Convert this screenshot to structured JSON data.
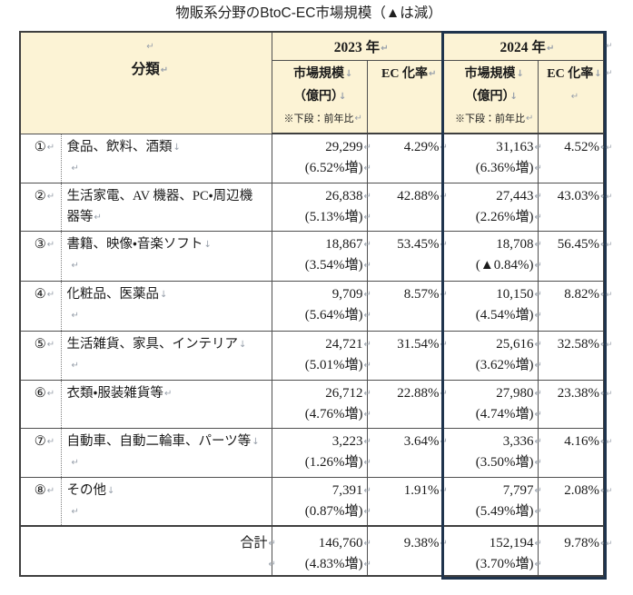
{
  "title": "物販系分野のBtoC-EC市場規模（▲は減）",
  "format_marks": {
    "paragraph": "↵",
    "line_break": "↓"
  },
  "colors": {
    "header_fill": "#fcf3d5",
    "grid_line": "#4f4f4f",
    "outer_border": "#3f3f3f",
    "highlight_box": "#1f344d",
    "format_mark": "#98a0ab",
    "text": "#1a1a1a"
  },
  "table": {
    "header": {
      "category": {
        "blank_mark": "↵",
        "label": "分類",
        "label_mark": "↵"
      },
      "y2023": {
        "label": "2023 年",
        "mark": "↵"
      },
      "y2024": {
        "label": "2024 年",
        "mark": "↵"
      },
      "size23": {
        "l1": "市場規模",
        "l1_mark": "↓",
        "l2": "（億円）",
        "l2_mark": "↓",
        "l3": "※下段：前年比",
        "l3_mark": "↵"
      },
      "ec23": {
        "l1": "EC 化率",
        "l1_mark": "↵",
        "l2": "",
        "l2_mark": ""
      },
      "size24": {
        "l1": "市場規模",
        "l1_mark": "↓",
        "l2": "（億円）",
        "l2_mark": "↓",
        "l3": "※下段：前年比",
        "l3_mark": "↵"
      },
      "ec24": {
        "l1": "EC 化率",
        "l1_mark": "↓",
        "l2": "",
        "l2_mark": "↵"
      }
    },
    "rows": [
      {
        "no": "①",
        "no_mark": "↵",
        "cat1": "食品、飲料、酒類",
        "cat1_mark": "↓",
        "cat2": "",
        "cat2_mark": "↵",
        "size23": "29,299",
        "size23_mark": "↵",
        "yoy23": "(6.52%増)",
        "yoy23_mark": "↵",
        "ec23": "4.29%",
        "ec23_mark": "↵",
        "size24": "31,163",
        "size24_mark": "↵",
        "yoy24": "(6.36%増)",
        "yoy24_mark": "↵",
        "ec24": "4.52%",
        "ec24_mark": "↵"
      },
      {
        "no": "②",
        "no_mark": "↵",
        "cat1": "生活家電、AV 機器、PC・周辺機",
        "cat1_mark": "",
        "cat2": "器等",
        "cat2_mark": "↵",
        "size23": "26,838",
        "size23_mark": "↵",
        "yoy23": "(5.13%増)",
        "yoy23_mark": "↵",
        "ec23": "42.88%",
        "ec23_mark": "↵",
        "size24": "27,443",
        "size24_mark": "↵",
        "yoy24": "(2.26%増)",
        "yoy24_mark": "↵",
        "ec24": "43.03%",
        "ec24_mark": "↵"
      },
      {
        "no": "③",
        "no_mark": "↵",
        "cat1": "書籍、映像・音楽ソフト",
        "cat1_mark": "↓",
        "cat2": "",
        "cat2_mark": "↵",
        "size23": "18,867",
        "size23_mark": "↵",
        "yoy23": "(3.54%増)",
        "yoy23_mark": "↵",
        "ec23": "53.45%",
        "ec23_mark": "↵",
        "size24": "18,708",
        "size24_mark": "↵",
        "yoy24": "(▲0.84%)",
        "yoy24_mark": "↵",
        "ec24": "56.45%",
        "ec24_mark": "↵"
      },
      {
        "no": "④",
        "no_mark": "↵",
        "cat1": "化粧品、医薬品",
        "cat1_mark": "↓",
        "cat2": "",
        "cat2_mark": "↵",
        "size23": "9,709",
        "size23_mark": "↵",
        "yoy23": "(5.64%増)",
        "yoy23_mark": "↵",
        "ec23": "8.57%",
        "ec23_mark": "↵",
        "size24": "10,150",
        "size24_mark": "↵",
        "yoy24": "(4.54%増)",
        "yoy24_mark": "↵",
        "ec24": "8.82%",
        "ec24_mark": "↵"
      },
      {
        "no": "⑤",
        "no_mark": "↵",
        "cat1": "生活雑貨、家具、インテリア",
        "cat1_mark": "↓",
        "cat2": "",
        "cat2_mark": "↵",
        "size23": "24,721",
        "size23_mark": "↵",
        "yoy23": "(5.01%増)",
        "yoy23_mark": "↵",
        "ec23": "31.54%",
        "ec23_mark": "↵",
        "size24": "25,616",
        "size24_mark": "↵",
        "yoy24": "(3.62%増)",
        "yoy24_mark": "↵",
        "ec24": "32.58%",
        "ec24_mark": "↵"
      },
      {
        "no": "⑥",
        "no_mark": "↵",
        "cat1": "衣類・服装雑貨等",
        "cat1_mark": "↵",
        "cat2": "",
        "cat2_mark": "",
        "size23": "26,712",
        "size23_mark": "↵",
        "yoy23": "(4.76%増)",
        "yoy23_mark": "↵",
        "ec23": "22.88%",
        "ec23_mark": "↵",
        "size24": "27,980",
        "size24_mark": "↵",
        "yoy24": "(4.74%増)",
        "yoy24_mark": "↵",
        "ec24": "23.38%",
        "ec24_mark": "↵"
      },
      {
        "no": "⑦",
        "no_mark": "↵",
        "cat1": "自動車、自動二輪車、パーツ等",
        "cat1_mark": "↓",
        "cat2": "",
        "cat2_mark": "↵",
        "size23": "3,223",
        "size23_mark": "↵",
        "yoy23": "(1.26%増)",
        "yoy23_mark": "↵",
        "ec23": "3.64%",
        "ec23_mark": "↵",
        "size24": "3,336",
        "size24_mark": "↵",
        "yoy24": "(3.50%増)",
        "yoy24_mark": "↵",
        "ec24": "4.16%",
        "ec24_mark": "↵"
      },
      {
        "no": "⑧",
        "no_mark": "↵",
        "cat1": "その他",
        "cat1_mark": "↓",
        "cat2": "",
        "cat2_mark": "↵",
        "size23": "7,391",
        "size23_mark": "↵",
        "yoy23": "(0.87%増)",
        "yoy23_mark": "↵",
        "ec23": "1.91%",
        "ec23_mark": "↵",
        "size24": "7,797",
        "size24_mark": "↵",
        "yoy24": "(5.49%増)",
        "yoy24_mark": "↵",
        "ec24": "2.08%",
        "ec24_mark": "↵"
      }
    ],
    "total": {
      "label": "合計",
      "label_mark": "↵",
      "label2_mark": "↵",
      "size23": "146,760",
      "size23_mark": "↵",
      "yoy23": "(4.83%増)",
      "yoy23_mark": "↵",
      "ec23": "9.38%",
      "ec23_mark": "↵",
      "size24": "152,194",
      "size24_mark": "↵",
      "yoy24": "(3.70%増)",
      "yoy24_mark": "↵",
      "ec24": "9.78%",
      "ec24_mark": "↵"
    }
  }
}
